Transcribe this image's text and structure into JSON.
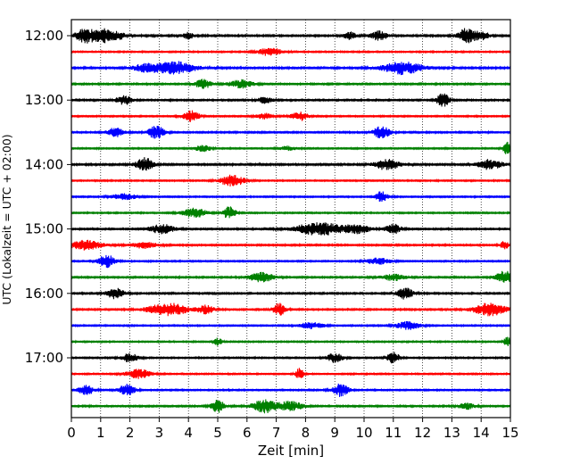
{
  "chart_data": {
    "type": "line",
    "title": "",
    "xlabel": "Zeit  [min]",
    "ylabel": "UTC (Lokalzeit = UTC + 02:00)",
    "xlim": [
      0,
      15
    ],
    "x_ticks": [
      "0",
      "1",
      "2",
      "3",
      "4",
      "5",
      "6",
      "7",
      "8",
      "9",
      "10",
      "11",
      "12",
      "13",
      "14",
      "15"
    ],
    "hour_ticks": [
      "12:00",
      "13:00",
      "14:00",
      "15:00",
      "16:00",
      "17:00"
    ],
    "trace_interval_min": 15,
    "trace_colors": [
      "#000000",
      "#ff0000",
      "#0000ff",
      "#008000"
    ],
    "grid_x": true,
    "traces": [
      {
        "start": "12:00",
        "color": "#000000",
        "noise": 0.09,
        "bursts": [
          [
            0.5,
            0.25,
            0.9
          ],
          [
            1.1,
            0.2,
            0.8
          ],
          [
            1.6,
            0.2,
            0.5
          ],
          [
            4.0,
            0.15,
            0.4
          ],
          [
            9.5,
            0.15,
            0.5
          ],
          [
            10.5,
            0.2,
            0.6
          ],
          [
            13.5,
            0.2,
            0.95
          ],
          [
            14.0,
            0.2,
            0.5
          ]
        ]
      },
      {
        "start": "12:15",
        "color": "#ff0000",
        "noise": 0.07,
        "bursts": [
          [
            6.8,
            0.3,
            0.5
          ]
        ]
      },
      {
        "start": "12:30",
        "color": "#0000ff",
        "noise": 0.09,
        "bursts": [
          [
            3.5,
            0.5,
            0.8
          ],
          [
            11.3,
            0.5,
            0.8
          ],
          [
            2.5,
            0.3,
            0.4
          ]
        ]
      },
      {
        "start": "12:45",
        "color": "#008000",
        "noise": 0.08,
        "bursts": [
          [
            4.5,
            0.2,
            0.6
          ],
          [
            5.8,
            0.3,
            0.5
          ]
        ]
      },
      {
        "start": "13:00",
        "color": "#000000",
        "noise": 0.08,
        "bursts": [
          [
            1.8,
            0.2,
            0.6
          ],
          [
            12.7,
            0.15,
            0.9
          ],
          [
            6.6,
            0.2,
            0.4
          ]
        ]
      },
      {
        "start": "13:15",
        "color": "#ff0000",
        "noise": 0.07,
        "bursts": [
          [
            4.1,
            0.2,
            0.7
          ],
          [
            7.8,
            0.2,
            0.6
          ],
          [
            6.6,
            0.2,
            0.4
          ]
        ]
      },
      {
        "start": "13:30",
        "color": "#0000ff",
        "noise": 0.08,
        "bursts": [
          [
            1.5,
            0.2,
            0.6
          ],
          [
            2.9,
            0.2,
            0.8
          ],
          [
            10.6,
            0.2,
            0.8
          ]
        ]
      },
      {
        "start": "13:45",
        "color": "#008000",
        "noise": 0.07,
        "bursts": [
          [
            4.5,
            0.2,
            0.4
          ],
          [
            14.9,
            0.1,
            0.8
          ],
          [
            7.4,
            0.2,
            0.3
          ]
        ]
      },
      {
        "start": "14:00",
        "color": "#000000",
        "noise": 0.09,
        "bursts": [
          [
            2.5,
            0.2,
            0.9
          ],
          [
            10.8,
            0.3,
            0.7
          ],
          [
            14.3,
            0.3,
            0.6
          ]
        ]
      },
      {
        "start": "14:15",
        "color": "#ff0000",
        "noise": 0.07,
        "bursts": [
          [
            5.5,
            0.3,
            0.7
          ]
        ]
      },
      {
        "start": "14:30",
        "color": "#0000ff",
        "noise": 0.07,
        "bursts": [
          [
            10.6,
            0.15,
            0.7
          ],
          [
            1.8,
            0.3,
            0.4
          ]
        ]
      },
      {
        "start": "14:45",
        "color": "#008000",
        "noise": 0.07,
        "bursts": [
          [
            4.2,
            0.3,
            0.6
          ],
          [
            5.4,
            0.15,
            0.8
          ]
        ]
      },
      {
        "start": "15:00",
        "color": "#000000",
        "noise": 0.08,
        "bursts": [
          [
            3.1,
            0.3,
            0.6
          ],
          [
            8.5,
            0.6,
            0.8
          ],
          [
            11.0,
            0.2,
            0.6
          ],
          [
            9.8,
            0.3,
            0.5
          ]
        ]
      },
      {
        "start": "15:15",
        "color": "#ff0000",
        "noise": 0.08,
        "bursts": [
          [
            0.5,
            0.4,
            0.6
          ],
          [
            2.5,
            0.3,
            0.4
          ],
          [
            14.8,
            0.1,
            0.5
          ]
        ]
      },
      {
        "start": "15:30",
        "color": "#0000ff",
        "noise": 0.07,
        "bursts": [
          [
            1.2,
            0.2,
            0.8
          ],
          [
            10.5,
            0.3,
            0.4
          ]
        ]
      },
      {
        "start": "15:45",
        "color": "#008000",
        "noise": 0.08,
        "bursts": [
          [
            6.5,
            0.3,
            0.6
          ],
          [
            14.8,
            0.2,
            0.9
          ],
          [
            11.0,
            0.3,
            0.4
          ]
        ]
      },
      {
        "start": "16:00",
        "color": "#000000",
        "noise": 0.08,
        "bursts": [
          [
            1.5,
            0.2,
            0.7
          ],
          [
            11.4,
            0.2,
            0.7
          ]
        ]
      },
      {
        "start": "16:15",
        "color": "#ff0000",
        "noise": 0.08,
        "bursts": [
          [
            3.3,
            0.5,
            0.8
          ],
          [
            7.1,
            0.15,
            0.8
          ],
          [
            14.3,
            0.4,
            0.8
          ],
          [
            4.6,
            0.2,
            0.5
          ]
        ]
      },
      {
        "start": "16:30",
        "color": "#0000ff",
        "noise": 0.07,
        "bursts": [
          [
            8.2,
            0.3,
            0.4
          ],
          [
            11.5,
            0.3,
            0.5
          ]
        ]
      },
      {
        "start": "16:45",
        "color": "#008000",
        "noise": 0.07,
        "bursts": [
          [
            5.0,
            0.1,
            0.5
          ],
          [
            14.9,
            0.1,
            0.6
          ]
        ]
      },
      {
        "start": "17:00",
        "color": "#000000",
        "noise": 0.07,
        "bursts": [
          [
            2.0,
            0.2,
            0.6
          ],
          [
            9.0,
            0.2,
            0.6
          ],
          [
            11.0,
            0.15,
            0.7
          ]
        ]
      },
      {
        "start": "17:15",
        "color": "#ff0000",
        "noise": 0.07,
        "bursts": [
          [
            2.3,
            0.3,
            0.6
          ],
          [
            7.8,
            0.1,
            0.7
          ]
        ]
      },
      {
        "start": "17:30",
        "color": "#0000ff",
        "noise": 0.07,
        "bursts": [
          [
            0.5,
            0.2,
            0.6
          ],
          [
            1.9,
            0.2,
            0.7
          ],
          [
            9.2,
            0.2,
            0.8
          ]
        ]
      },
      {
        "start": "17:45",
        "color": "#008000",
        "noise": 0.08,
        "bursts": [
          [
            5.0,
            0.15,
            0.8
          ],
          [
            6.6,
            0.3,
            0.8
          ],
          [
            7.5,
            0.3,
            0.6
          ],
          [
            13.5,
            0.2,
            0.4
          ]
        ]
      }
    ]
  }
}
